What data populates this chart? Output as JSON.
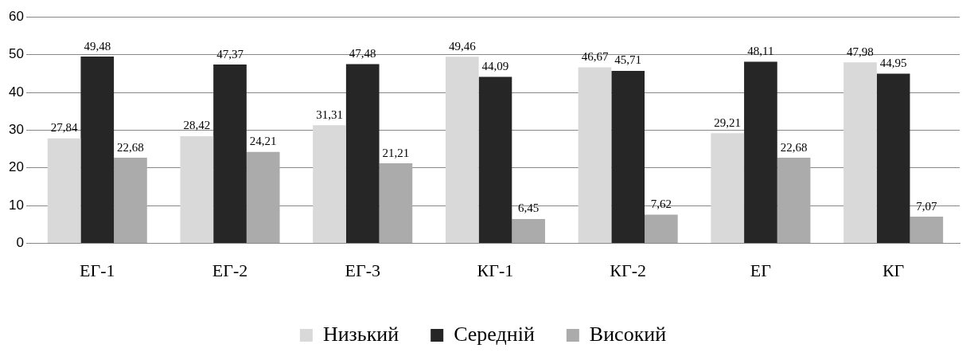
{
  "chart_data": {
    "type": "bar",
    "categories": [
      "ЕГ-1",
      "ЕГ-2",
      "ЕГ-3",
      "КГ-1",
      "КГ-2",
      "ЕГ",
      "КГ"
    ],
    "series": [
      {
        "name": "Низький",
        "color": "#d9d9d9",
        "values": [
          27.84,
          28.42,
          31.31,
          49.46,
          46.67,
          29.21,
          47.98
        ],
        "value_labels": [
          "27,84",
          "28,42",
          "31,31",
          "49,46",
          "46,67",
          "29,21",
          "47,98"
        ]
      },
      {
        "name": "Середній",
        "color": "#262626",
        "values": [
          49.48,
          47.37,
          47.48,
          44.09,
          45.71,
          48.11,
          44.95
        ],
        "value_labels": [
          "49,48",
          "47,37",
          "47,48",
          "44,09",
          "45,71",
          "48,11",
          "44,95"
        ]
      },
      {
        "name": "Високий",
        "color": "#ababab",
        "values": [
          22.68,
          24.21,
          21.21,
          6.45,
          7.62,
          22.68,
          7.07
        ],
        "value_labels": [
          "22,68",
          "24,21",
          "21,21",
          "6,45",
          "7,62",
          "22,68",
          "7,07"
        ]
      }
    ],
    "ylim": [
      0,
      60
    ],
    "yticks": [
      0,
      10,
      20,
      30,
      40,
      50,
      60
    ],
    "grid": "y",
    "legend": "bottom"
  }
}
